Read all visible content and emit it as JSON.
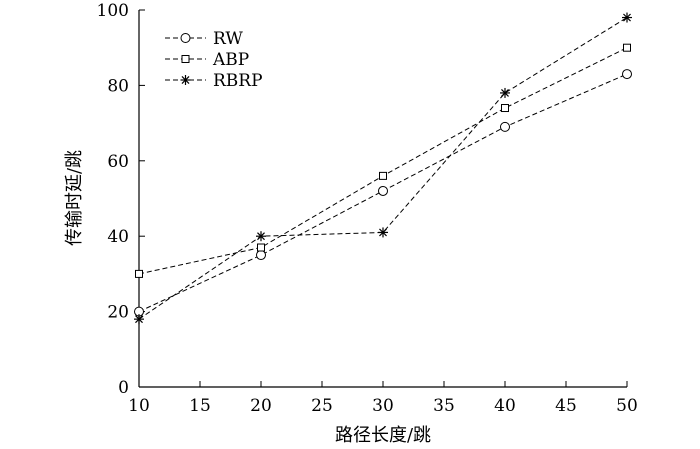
{
  "chart_data": {
    "type": "line",
    "xlabel": "路径长度/跳",
    "ylabel": "传输时延/跳",
    "xlim": [
      10,
      50
    ],
    "ylim": [
      0,
      100
    ],
    "x_ticks": [
      10,
      15,
      20,
      25,
      30,
      35,
      40,
      45,
      50
    ],
    "y_ticks": [
      0,
      20,
      40,
      60,
      80,
      100
    ],
    "grid": false,
    "legend_position": "top-left",
    "x": [
      10,
      20,
      30,
      40,
      50
    ],
    "series": [
      {
        "name": "RW",
        "marker": "circle",
        "values": [
          20,
          35,
          52,
          69,
          83
        ]
      },
      {
        "name": "ABP",
        "marker": "square",
        "values": [
          30,
          37,
          56,
          74,
          90
        ]
      },
      {
        "name": "RBRP",
        "marker": "star",
        "values": [
          18,
          40,
          41,
          78,
          98
        ]
      }
    ],
    "line_color": "#000000",
    "line_style": "dashed"
  }
}
